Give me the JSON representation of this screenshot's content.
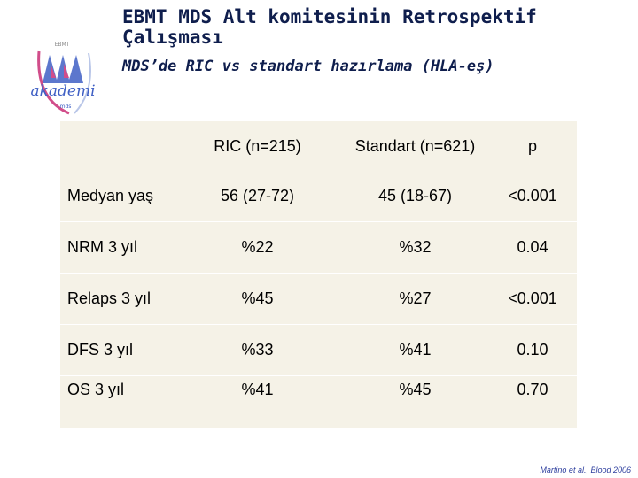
{
  "header": {
    "title": "EBMT MDS Alt komitesinin Retrospektif Çalışması",
    "subtitle": "MDS’de RIC vs standart hazırlama (HLA-eş)"
  },
  "logo": {
    "text": "akademi",
    "top_text": "EBMT",
    "bottom_text": "mds"
  },
  "table": {
    "headers": {
      "ric": "RIC (n=215)",
      "standart": "Standart (n=621)",
      "p": "p"
    },
    "rows": [
      {
        "label": "Medyan yaş",
        "ric": "56 (27-72)",
        "standart": "45 (18-67)",
        "p": "<0.001"
      },
      {
        "label": "NRM 3 yıl",
        "ric": "%22",
        "standart": "%32",
        "p": "0.04"
      },
      {
        "label": "Relaps 3 yıl",
        "ric": "%45",
        "standart": "%27",
        "p": "<0.001"
      },
      {
        "label": "DFS 3 yıl",
        "ric": "%33",
        "standart": "%41",
        "p": "0.10"
      },
      {
        "label": "OS 3 yıl",
        "ric": "%41",
        "standart": "%45",
        "p": "0.70"
      }
    ]
  },
  "citation": "Martino et al., Blood 2006",
  "colors": {
    "title": "#0f1e4d",
    "table_bg": "#f5f2e7",
    "logo_blue": "#3f5fc4",
    "logo_pink": "#d14d8a"
  }
}
